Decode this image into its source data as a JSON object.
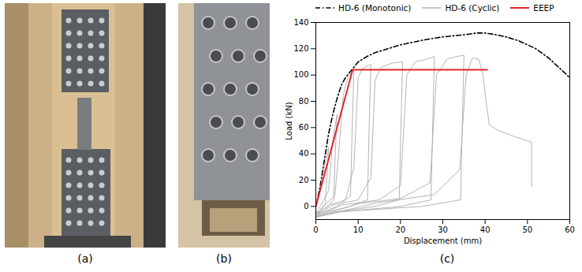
{
  "figure": {
    "panel_labels": [
      "(a)",
      "(b)",
      "(c)"
    ]
  },
  "chart_data": {
    "type": "line",
    "xlabel": "Displacement (mm)",
    "ylabel": "Load (kN)",
    "xlim": [
      0,
      60
    ],
    "xticks": [
      0,
      10,
      20,
      30,
      40,
      50,
      60
    ],
    "ylim": [
      -10,
      140
    ],
    "yticks": [
      0,
      20,
      40,
      60,
      80,
      100,
      120,
      140
    ],
    "grid": false,
    "legend": "top",
    "series": [
      {
        "name": "HD-6 (Monotonic)",
        "color": "#000000",
        "line_style": "dashdot",
        "x": [
          0,
          1,
          2,
          3,
          4,
          5,
          6,
          7,
          8,
          9,
          10,
          12,
          14,
          16,
          18,
          20,
          23,
          26,
          30,
          33,
          36,
          38,
          40,
          42,
          45,
          48,
          50,
          52,
          55,
          58,
          60
        ],
        "values": [
          0,
          15,
          35,
          55,
          70,
          82,
          92,
          98,
          102,
          106,
          110,
          114,
          117,
          119,
          121,
          123,
          125,
          127,
          129,
          130,
          131,
          132,
          132,
          131,
          129,
          126,
          123,
          120,
          113,
          104,
          98
        ]
      },
      {
        "name": "HD-6 (Cyclic)",
        "color": "#b4b4b4",
        "line_style": "solid",
        "x": [
          0,
          1,
          2,
          3,
          2.6,
          2.2,
          1,
          0,
          1,
          3,
          4,
          5,
          4.6,
          4.2,
          2,
          0,
          2,
          4.5,
          5.5,
          6.5,
          7.5,
          9,
          8.6,
          8.2,
          5,
          2,
          0,
          3,
          7,
          9,
          10,
          11,
          13,
          12.6,
          12.2,
          8,
          3,
          0,
          4,
          10,
          13,
          14,
          15.5,
          18,
          20.5,
          20.1,
          19.7,
          14,
          5,
          0,
          6,
          15,
          20,
          21.5,
          23.5,
          26,
          28,
          27.6,
          27.2,
          20,
          6,
          0,
          10,
          20,
          27,
          28.5,
          31,
          33,
          35,
          34.6,
          34.2,
          25,
          6,
          0,
          15,
          28,
          34,
          35.5,
          37,
          38.5,
          39.5,
          40.2,
          41,
          43,
          47,
          51,
          51
        ],
        "values": [
          0,
          12,
          30,
          45,
          20,
          2,
          -4,
          -5,
          0,
          12,
          50,
          70,
          40,
          5,
          -3,
          -6,
          1,
          8,
          45,
          85,
          98,
          104,
          60,
          8,
          0,
          -4,
          -6,
          1,
          5,
          30,
          98,
          105,
          108,
          60,
          5,
          0,
          -4,
          -7,
          1,
          5,
          22,
          96,
          106,
          109,
          110,
          60,
          5,
          0,
          -4,
          -8,
          1,
          5,
          16,
          100,
          110,
          112,
          114,
          60,
          5,
          0,
          -4,
          -8,
          2,
          6,
          18,
          100,
          112,
          114,
          115,
          60,
          5,
          0,
          -4,
          -8,
          3,
          9,
          28,
          100,
          113,
          112,
          100,
          80,
          62,
          58,
          53,
          49,
          15
        ]
      },
      {
        "name": "EEEP",
        "color": "#e3262b",
        "line_style": "solid",
        "x": [
          0,
          8.7,
          40.5
        ],
        "values": [
          0,
          104,
          104
        ]
      }
    ]
  }
}
